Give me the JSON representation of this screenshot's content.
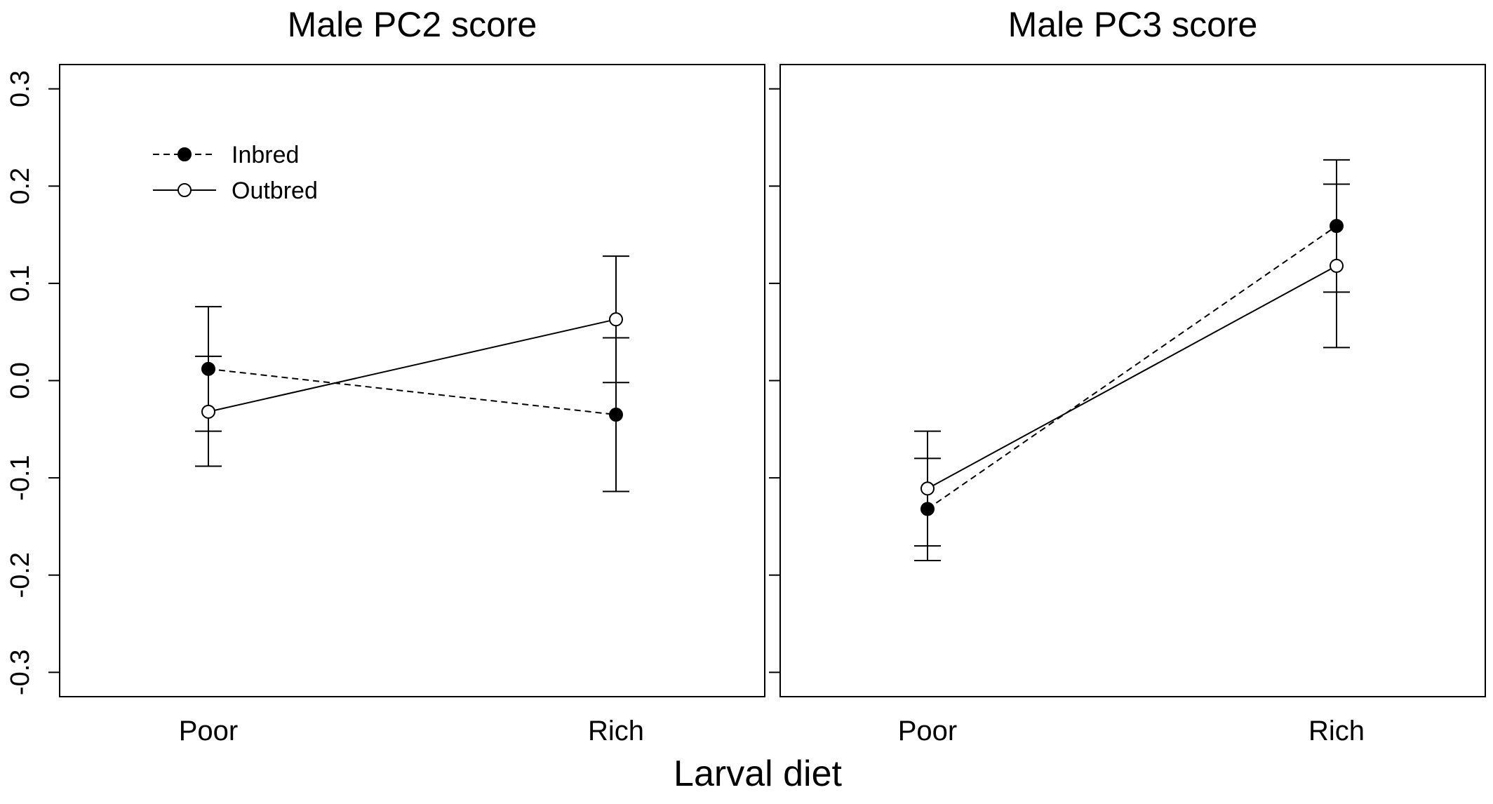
{
  "figure": {
    "xlabel": "Larval diet",
    "legend": {
      "placement": "top-left of first panel",
      "entries": [
        {
          "label": "Inbred",
          "marker": "filled-circle",
          "line": "dashed"
        },
        {
          "label": "Outbred",
          "marker": "open-circle",
          "line": "solid"
        }
      ]
    }
  },
  "chart_data": [
    {
      "type": "line",
      "title": "Male PC2 score",
      "xlabel": "",
      "ylabel": "",
      "categories": [
        "Poor",
        "Rich"
      ],
      "ylim": [
        -0.325,
        0.325
      ],
      "yticks": [
        -0.3,
        -0.2,
        -0.1,
        0.0,
        0.1,
        0.2,
        0.3
      ],
      "ytick_labels": [
        "-0.3",
        "-0.2",
        "-0.1",
        "0.0",
        "0.1",
        "0.2",
        "0.3"
      ],
      "show_yticks": true,
      "grid": false,
      "series": [
        {
          "name": "Inbred",
          "marker": "filled",
          "dash": true,
          "values": [
            0.012,
            -0.035
          ],
          "err_low": [
            -0.052,
            -0.114
          ],
          "err_high": [
            0.076,
            0.044
          ]
        },
        {
          "name": "Outbred",
          "marker": "open",
          "dash": false,
          "values": [
            -0.032,
            0.063
          ],
          "err_low": [
            -0.088,
            -0.002
          ],
          "err_high": [
            0.025,
            0.128
          ]
        }
      ]
    },
    {
      "type": "line",
      "title": "Male PC3 score",
      "xlabel": "",
      "ylabel": "",
      "categories": [
        "Poor",
        "Rich"
      ],
      "ylim": [
        -0.325,
        0.325
      ],
      "yticks": [
        -0.3,
        -0.2,
        -0.1,
        0.0,
        0.1,
        0.2,
        0.3
      ],
      "ytick_labels": [],
      "show_yticks": false,
      "grid": false,
      "series": [
        {
          "name": "Inbred",
          "marker": "filled",
          "dash": true,
          "values": [
            -0.132,
            0.159
          ],
          "err_low": [
            -0.185,
            0.091
          ],
          "err_high": [
            -0.08,
            0.227
          ]
        },
        {
          "name": "Outbred",
          "marker": "open",
          "dash": false,
          "values": [
            -0.111,
            0.118
          ],
          "err_low": [
            -0.17,
            0.034
          ],
          "err_high": [
            -0.052,
            0.202
          ]
        }
      ]
    }
  ]
}
